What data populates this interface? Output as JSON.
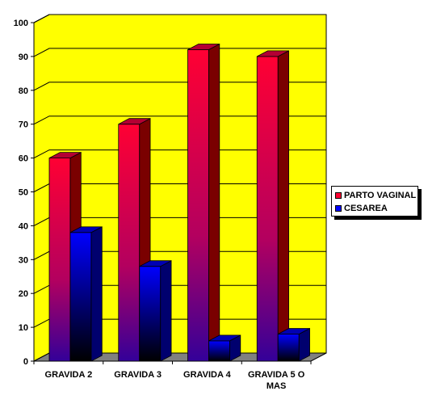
{
  "chart_data": {
    "type": "bar",
    "categories": [
      "GRAVIDA 2",
      "GRAVIDA 3",
      "GRAVIDA 4",
      "GRAVIDA 5 O MAS"
    ],
    "series": [
      {
        "name": "PARTO VAGINAL",
        "values": [
          60,
          70,
          92,
          90
        ],
        "color": "#ff0033"
      },
      {
        "name": "CESAREA",
        "values": [
          38,
          28,
          6,
          8
        ],
        "color": "#0000ff"
      }
    ],
    "ylim": [
      0,
      100
    ],
    "yticks": [
      "0",
      "10",
      "20",
      "30",
      "40",
      "50",
      "60",
      "70",
      "80",
      "90",
      "100"
    ],
    "title": "",
    "xlabel": "",
    "ylabel": "",
    "grid": true,
    "legend_position": "right",
    "plot_background": "#ffff00"
  }
}
